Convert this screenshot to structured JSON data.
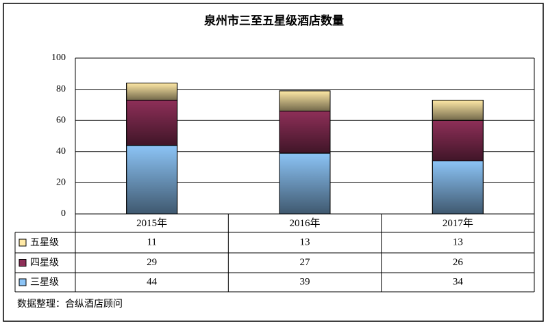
{
  "chart_data": {
    "type": "stacked_bar",
    "title": "泉州市三至五星级酒店数量",
    "categories": [
      "2015年",
      "2016年",
      "2017年"
    ],
    "series": [
      {
        "name": "三星级",
        "color": "#8cc4f6",
        "values": [
          44,
          39,
          34
        ]
      },
      {
        "name": "四星级",
        "color": "#8e2f58",
        "values": [
          29,
          27,
          26
        ]
      },
      {
        "name": "五星级",
        "color": "#ffe9a6",
        "values": [
          11,
          13,
          13
        ]
      }
    ],
    "ylim": [
      0,
      100
    ],
    "yticks": [
      0,
      20,
      40,
      60,
      80,
      100
    ],
    "grid": true,
    "note": "数据整理：合纵酒店顾问"
  }
}
